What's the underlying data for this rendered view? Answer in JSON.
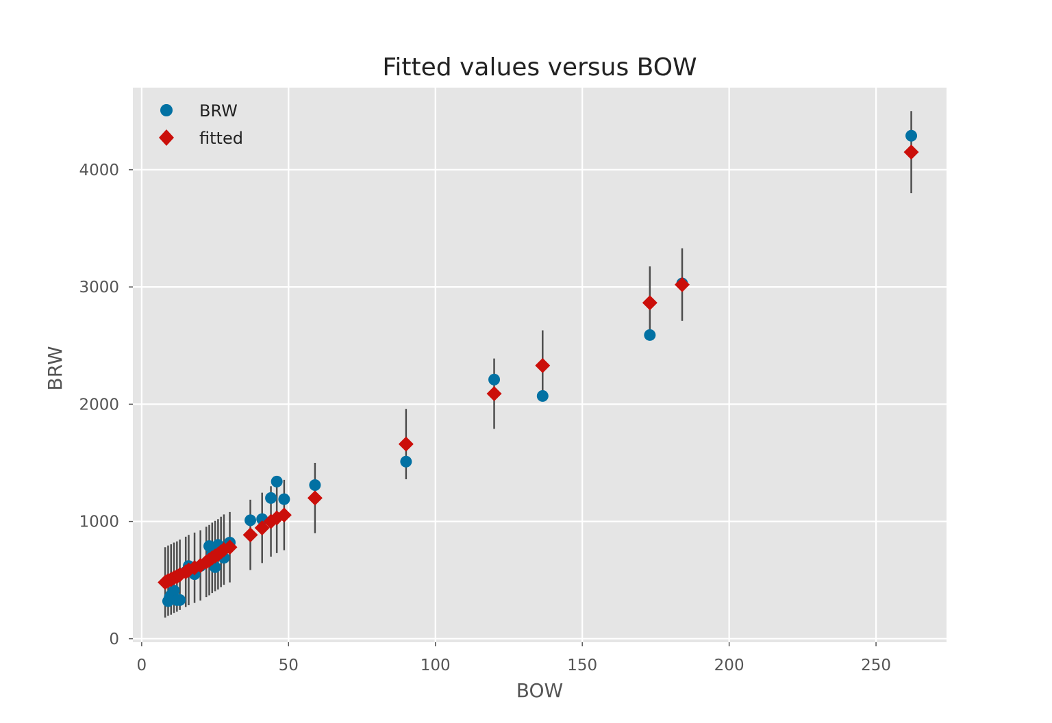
{
  "chart_data": {
    "type": "scatter",
    "title": "Fitted values versus BOW",
    "xlabel": "BOW",
    "ylabel": "BRW",
    "xlim": [
      -3,
      274
    ],
    "ylim": [
      -30,
      4700
    ],
    "xticks": [
      0,
      50,
      100,
      150,
      200,
      250
    ],
    "yticks": [
      0,
      1000,
      2000,
      3000,
      4000
    ],
    "grid": true,
    "legend_position": "top-left",
    "colors": {
      "background": "#e5e5e5",
      "grid": "#ffffff",
      "brw": "#0271a3",
      "fitted": "#cb0f0a",
      "errorbar": "#4d4d4d"
    },
    "series": [
      {
        "name": "BRW",
        "marker": "circle",
        "points": [
          {
            "x": 9,
            "y": 320
          },
          {
            "x": 9.5,
            "y": 350
          },
          {
            "x": 10,
            "y": 370
          },
          {
            "x": 11,
            "y": 410
          },
          {
            "x": 12,
            "y": 330
          },
          {
            "x": 13,
            "y": 330
          },
          {
            "x": 15,
            "y": 570
          },
          {
            "x": 16,
            "y": 620
          },
          {
            "x": 18,
            "y": 550
          },
          {
            "x": 20,
            "y": 620
          },
          {
            "x": 23,
            "y": 790
          },
          {
            "x": 24,
            "y": 720
          },
          {
            "x": 25,
            "y": 610
          },
          {
            "x": 26,
            "y": 800
          },
          {
            "x": 27,
            "y": 740
          },
          {
            "x": 28,
            "y": 690
          },
          {
            "x": 30,
            "y": 820
          },
          {
            "x": 37,
            "y": 1010
          },
          {
            "x": 41,
            "y": 1020
          },
          {
            "x": 44,
            "y": 1200
          },
          {
            "x": 46,
            "y": 1340
          },
          {
            "x": 48.5,
            "y": 1190
          },
          {
            "x": 59,
            "y": 1310
          },
          {
            "x": 90,
            "y": 1510
          },
          {
            "x": 120,
            "y": 2210
          },
          {
            "x": 136.5,
            "y": 2070
          },
          {
            "x": 173,
            "y": 2590
          },
          {
            "x": 184,
            "y": 3030
          },
          {
            "x": 262,
            "y": 4290
          }
        ]
      },
      {
        "name": "fitted",
        "marker": "diamond",
        "points": [
          {
            "x": 8,
            "y": 480,
            "err": 300
          },
          {
            "x": 9,
            "y": 495,
            "err": 300
          },
          {
            "x": 10,
            "y": 505,
            "err": 300
          },
          {
            "x": 11,
            "y": 520,
            "err": 300
          },
          {
            "x": 12,
            "y": 530,
            "err": 300
          },
          {
            "x": 13,
            "y": 545,
            "err": 300
          },
          {
            "x": 15,
            "y": 570,
            "err": 300
          },
          {
            "x": 16,
            "y": 585,
            "err": 300
          },
          {
            "x": 18,
            "y": 605,
            "err": 300
          },
          {
            "x": 20,
            "y": 625,
            "err": 300
          },
          {
            "x": 22,
            "y": 655,
            "err": 300
          },
          {
            "x": 23,
            "y": 670,
            "err": 300
          },
          {
            "x": 24,
            "y": 690,
            "err": 300
          },
          {
            "x": 25,
            "y": 705,
            "err": 300
          },
          {
            "x": 26,
            "y": 720,
            "err": 300
          },
          {
            "x": 27,
            "y": 740,
            "err": 300
          },
          {
            "x": 28,
            "y": 760,
            "err": 300
          },
          {
            "x": 30,
            "y": 780,
            "err": 300
          },
          {
            "x": 37,
            "y": 885,
            "err": 300
          },
          {
            "x": 41,
            "y": 945,
            "err": 300
          },
          {
            "x": 44,
            "y": 1000,
            "err": 300
          },
          {
            "x": 46,
            "y": 1030,
            "err": 300
          },
          {
            "x": 48.5,
            "y": 1055,
            "err": 300
          },
          {
            "x": 59,
            "y": 1200,
            "err": 300
          },
          {
            "x": 90,
            "y": 1660,
            "err": 300
          },
          {
            "x": 120,
            "y": 2090,
            "err": 300
          },
          {
            "x": 136.5,
            "y": 2330,
            "err": 300
          },
          {
            "x": 173,
            "y": 2865,
            "err": 310
          },
          {
            "x": 184,
            "y": 3020,
            "err": 310
          },
          {
            "x": 262,
            "y": 4150,
            "err": 350
          }
        ]
      }
    ]
  }
}
